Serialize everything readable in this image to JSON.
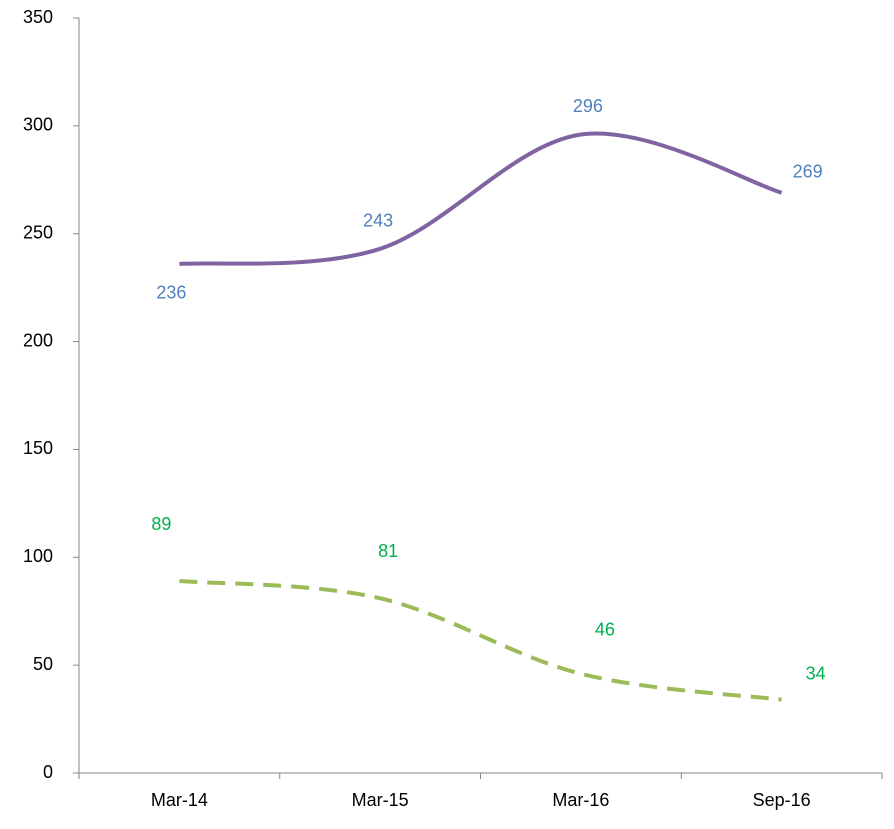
{
  "chart_data": {
    "type": "line",
    "categories": [
      "Mar-14",
      "Mar-15",
      "Mar-16",
      "Sep-16"
    ],
    "series": [
      {
        "color": "#8064a2",
        "label_color": "#4f81bd",
        "dashed": false,
        "values": [
          236,
          243,
          296,
          269
        ]
      },
      {
        "color": "#9bbb59",
        "label_color": "#00b050",
        "dashed": true,
        "values": [
          89,
          81,
          46,
          34
        ]
      }
    ],
    "ylim": [
      0,
      350
    ],
    "yticks": [
      0,
      50,
      100,
      150,
      200,
      250,
      300,
      350
    ],
    "smooth": true
  }
}
